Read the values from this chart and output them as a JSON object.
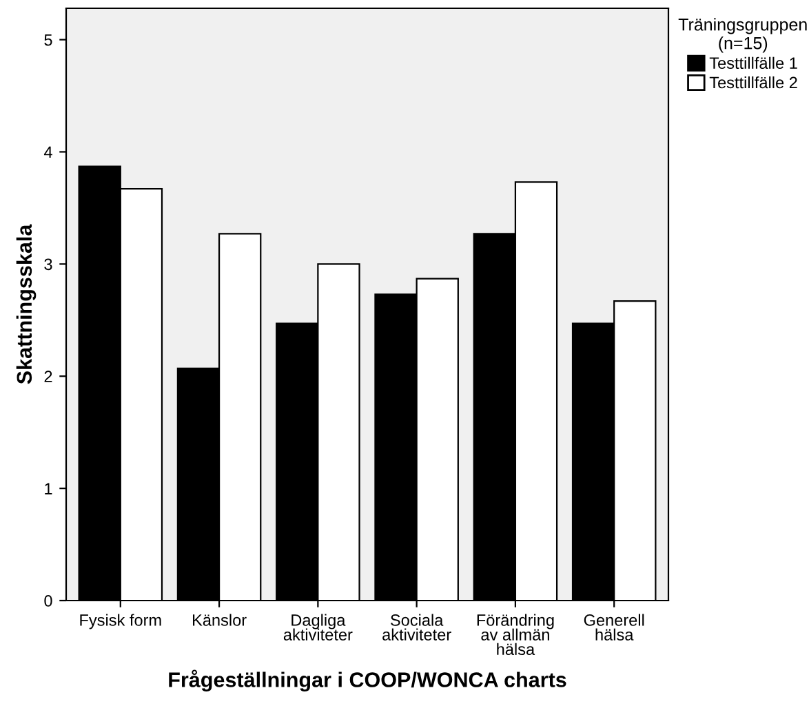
{
  "chart_data": {
    "type": "bar",
    "xlabel": "Frågeställningar i COOP/WONCA charts",
    "ylabel": "Skattningsskala",
    "legend_title": "Träningsgruppen\n(n=15)",
    "categories": [
      "Fysisk form",
      "Känslor",
      "Dagliga\naktiviteter",
      "Sociala\naktiviteter",
      "Förändring\nav allmän\nhälsa",
      "Generell\nhälsa"
    ],
    "series": [
      {
        "name": "Testtillfälle 1",
        "color": "#000000",
        "values": [
          3.87,
          2.07,
          2.47,
          2.73,
          3.27,
          2.47
        ]
      },
      {
        "name": "Testtillfälle 2",
        "color": "#ffffff",
        "values": [
          3.67,
          3.27,
          3.0,
          2.87,
          3.73,
          2.67
        ]
      }
    ],
    "ylim": [
      0,
      5.28
    ],
    "yticks": [
      0,
      1,
      2,
      3,
      4,
      5
    ],
    "grid": false,
    "legend": "top right"
  }
}
